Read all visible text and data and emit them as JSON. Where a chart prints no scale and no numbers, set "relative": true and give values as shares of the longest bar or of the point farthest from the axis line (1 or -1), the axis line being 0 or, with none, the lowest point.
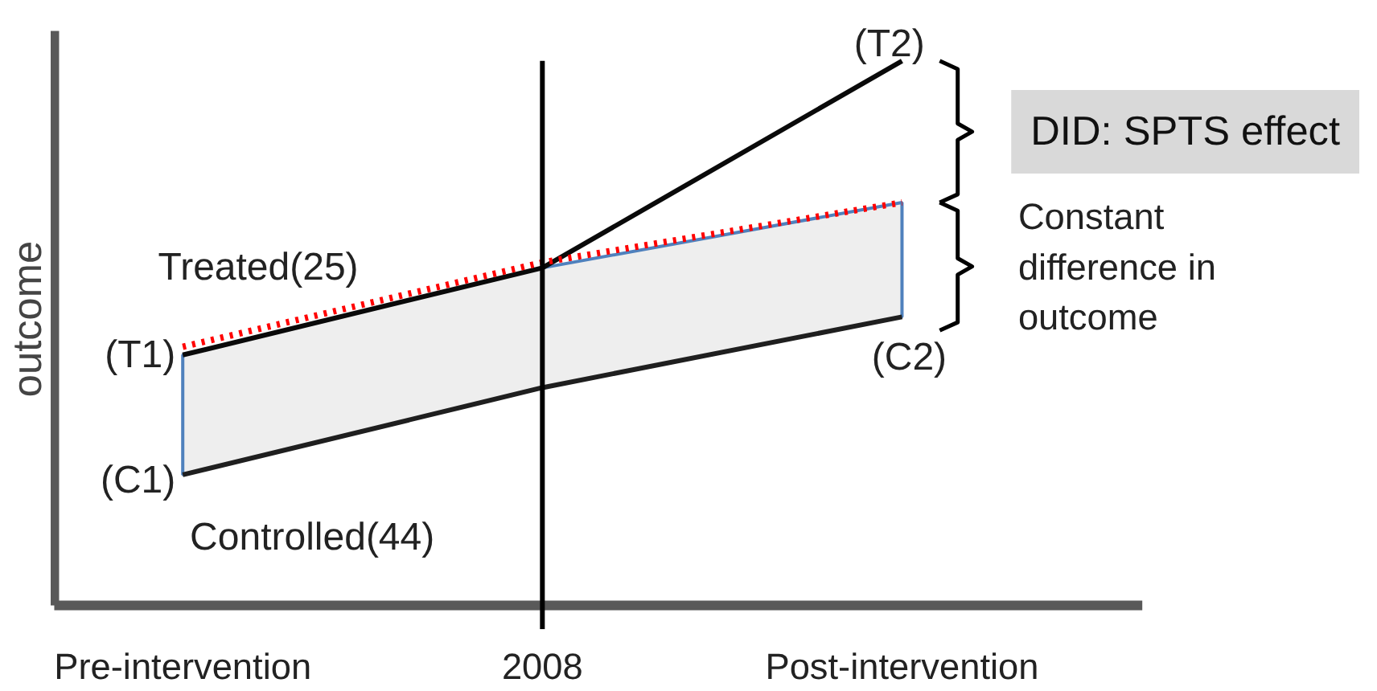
{
  "chart_data": {
    "type": "line",
    "relative": true,
    "ylabel": "outcome",
    "tick_labels": "x",
    "grid": false,
    "marker": "none",
    "categories": [
      "Pre-intervention",
      "2008",
      "Post-intervention"
    ],
    "series": [
      {
        "color": "#0a0a0a",
        "values": [
          0.46,
          0.62,
          1.0
        ]
      },
      {
        "color": "#ff0000",
        "line_style": "dotted",
        "values": [
          0.475,
          0.63,
          0.74
        ],
        "lower": [
          0.24,
          0.4,
          0.53
        ],
        "upper": [
          0.46,
          0.62,
          0.74
        ]
      },
      {
        "color": "#1f1f1f",
        "values": [
          0.24,
          0.4,
          0.53
        ]
      }
    ],
    "ref_lines": [
      {
        "axis": "x",
        "value": "2008",
        "color": "#000000"
      }
    ],
    "annotations": [
      "(T1)",
      "(T2)",
      "(C1)",
      "(C2)",
      "Treated(25)",
      "Controlled(44)",
      "DID: SPTS effect",
      "Constant difference in outcome"
    ]
  }
}
